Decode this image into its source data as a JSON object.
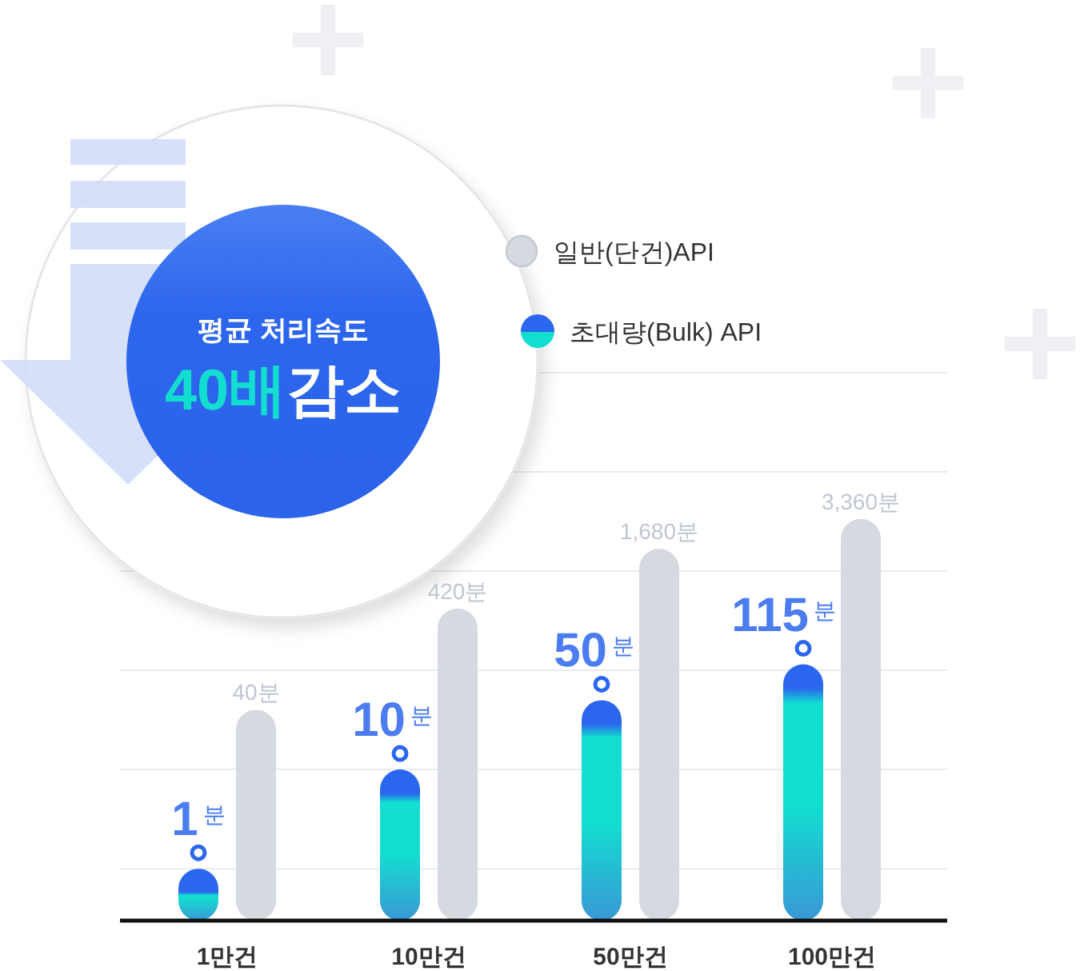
{
  "chart_data": {
    "type": "bar",
    "title": "평균 처리속도",
    "subtitle": "40배감소",
    "categories": [
      "1만건",
      "10만건",
      "50만건",
      "100만건"
    ],
    "series": [
      {
        "name": "초대량(Bulk) API",
        "color": "#2b66ee",
        "values": [
          1,
          10,
          50,
          115
        ],
        "value_labels": [
          "1$^{분}$",
          "10$^{분}$",
          "50$^{분}$",
          "115$^{분}$"
        ]
      },
      {
        "name": "일반(단건)API",
        "color": "#d5d9e0",
        "values": [
          40,
          420,
          1680,
          3360
        ],
        "value_labels": [
          "40분",
          "420분",
          "1,680분",
          "3,360분"
        ]
      }
    ],
    "log": true,
    "ylim": [
      0.3,
      100000
    ],
    "yticks": [
      {
        "value": 1,
        "label": null
      },
      {
        "value": 10,
        "label": null
      },
      {
        "value": 100,
        "label": null
      },
      {
        "value": 1000,
        "label": null
      },
      {
        "value": 10000,
        "label": null
      },
      {
        "value": 100000,
        "label": null
      }
    ],
    "grid": "y",
    "tick_labels": "x",
    "legend": "top"
  }
}
